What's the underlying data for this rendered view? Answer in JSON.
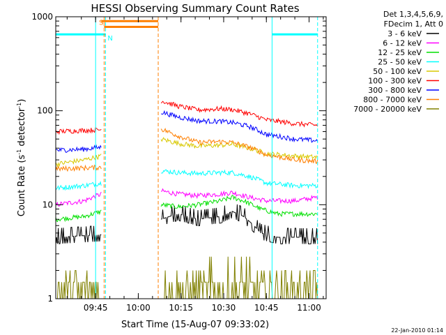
{
  "chart_data": {
    "type": "line",
    "title": "HESSI Observing Summary Count Rates",
    "xlabel": "Start Time (15-Aug-07 09:33:02)",
    "ylabel_main": "Count Rate (s",
    "ylabel_sup1": "-1",
    "ylabel_mid": " detector",
    "ylabel_sup2": "-1",
    "ylabel_end": ")",
    "yscale": "log",
    "ylim": [
      1,
      1000
    ],
    "xlim_minutes": [
      0,
      95
    ],
    "x_ticks": [
      {
        "t": 14,
        "label": "09:45"
      },
      {
        "t": 29,
        "label": "10:00"
      },
      {
        "t": 44,
        "label": "10:15"
      },
      {
        "t": 59,
        "label": "10:30"
      },
      {
        "t": 74,
        "label": "10:45"
      },
      {
        "t": 89,
        "label": "11:00"
      }
    ],
    "y_ticks": [
      {
        "v": 1,
        "label": "1"
      },
      {
        "v": 10,
        "label": "10"
      },
      {
        "v": 100,
        "label": "100"
      },
      {
        "v": 1000,
        "label": "1000"
      }
    ],
    "legend_header": [
      "Det 1,3,4,5,6,9,",
      "FDecim 1, Att 0"
    ],
    "series": [
      {
        "name": "3 - 6 keV",
        "color": "#000000",
        "segments": [
          [
            [
              0,
              4.5
            ],
            [
              16,
              4.8
            ]
          ],
          [
            [
              37,
              7
            ],
            [
              43,
              8
            ],
            [
              50,
              7
            ],
            [
              58,
              7.5
            ],
            [
              62,
              8.5
            ],
            [
              66,
              7.5
            ],
            [
              72,
              5
            ],
            [
              78,
              4.5
            ],
            [
              92,
              4.5
            ]
          ]
        ]
      },
      {
        "name": "6 - 12 keV",
        "color": "#ff00ff",
        "segments": [
          [
            [
              0,
              10
            ],
            [
              10,
              11
            ],
            [
              16,
              13
            ]
          ],
          [
            [
              37,
              14
            ],
            [
              43,
              13
            ],
            [
              50,
              12.5
            ],
            [
              58,
              13
            ],
            [
              62,
              13.5
            ],
            [
              68,
              12
            ],
            [
              74,
              11
            ],
            [
              84,
              11
            ],
            [
              92,
              12
            ]
          ]
        ]
      },
      {
        "name": "12 - 25 keV",
        "color": "#00e000",
        "segments": [
          [
            [
              0,
              7
            ],
            [
              10,
              7.5
            ],
            [
              16,
              8.5
            ]
          ],
          [
            [
              37,
              10
            ],
            [
              43,
              9.5
            ],
            [
              50,
              10
            ],
            [
              58,
              11
            ],
            [
              62,
              12
            ],
            [
              66,
              11
            ],
            [
              72,
              9
            ],
            [
              78,
              8
            ],
            [
              92,
              8
            ]
          ]
        ]
      },
      {
        "name": "25 - 50 keV",
        "color": "#00ffff",
        "segments": [
          [
            [
              0,
              15
            ],
            [
              10,
              16
            ],
            [
              16,
              17
            ]
          ],
          [
            [
              37,
              23
            ],
            [
              43,
              22
            ],
            [
              50,
              21.5
            ],
            [
              58,
              22
            ],
            [
              62,
              22
            ],
            [
              68,
              20
            ],
            [
              74,
              17
            ],
            [
              84,
              16
            ],
            [
              92,
              16
            ]
          ]
        ]
      },
      {
        "name": "50 - 100 keV",
        "color": "#d8c800",
        "segments": [
          [
            [
              0,
              27
            ],
            [
              10,
              30
            ],
            [
              16,
              33
            ]
          ],
          [
            [
              37,
              50
            ],
            [
              43,
              45
            ],
            [
              50,
              42
            ],
            [
              58,
              43
            ],
            [
              62,
              44
            ],
            [
              68,
              40
            ],
            [
              74,
              35
            ],
            [
              84,
              33
            ],
            [
              92,
              32
            ]
          ]
        ]
      },
      {
        "name": "100 - 300 keV",
        "color": "#ff0000",
        "segments": [
          [
            [
              0,
              60
            ],
            [
              16,
              63
            ]
          ],
          [
            [
              37,
              128
            ],
            [
              43,
              112
            ],
            [
              50,
              102
            ],
            [
              58,
              105
            ],
            [
              62,
              103
            ],
            [
              68,
              93
            ],
            [
              74,
              80
            ],
            [
              84,
              73
            ],
            [
              92,
              70
            ]
          ]
        ]
      },
      {
        "name": "300 - 800 keV",
        "color": "#0000ff",
        "segments": [
          [
            [
              0,
              38
            ],
            [
              10,
              39
            ],
            [
              16,
              41
            ]
          ],
          [
            [
              37,
              97
            ],
            [
              43,
              86
            ],
            [
              50,
              78
            ],
            [
              58,
              77
            ],
            [
              62,
              75
            ],
            [
              68,
              68
            ],
            [
              74,
              56
            ],
            [
              84,
              50
            ],
            [
              92,
              48
            ]
          ]
        ]
      },
      {
        "name": "800 - 7000 keV",
        "color": "#ff7f00",
        "segments": [
          [
            [
              0,
              24
            ],
            [
              16,
              25
            ]
          ],
          [
            [
              16,
              900
            ],
            [
              36,
              900
            ]
          ],
          [
            [
              37,
              64
            ],
            [
              43,
              54
            ],
            [
              50,
              46
            ],
            [
              58,
              47
            ],
            [
              62,
              46
            ],
            [
              68,
              41
            ],
            [
              74,
              34
            ],
            [
              84,
              30
            ],
            [
              92,
              29
            ]
          ]
        ]
      },
      {
        "name": "7000 - 20000 keV",
        "color": "#808000",
        "segments": [
          [
            [
              0,
              1.5
            ],
            [
              16,
              1.5
            ]
          ],
          [
            [
              37,
              1.5
            ],
            [
              43,
              1.5
            ],
            [
              50,
              1.5
            ],
            [
              58,
              2.1
            ],
            [
              62,
              2.3
            ],
            [
              66,
              2.1
            ],
            [
              72,
              1.5
            ],
            [
              92,
              1.5
            ]
          ]
        ]
      }
    ],
    "flag_lines": [
      {
        "t": 14,
        "color": "#00ffff",
        "style": "solid"
      },
      {
        "t": 17.5,
        "color": "#00ffff",
        "style": "dashed"
      },
      {
        "t": 17,
        "color": "#ff7f00",
        "style": "dashed"
      },
      {
        "t": 36,
        "color": "#ff7f00",
        "style": "dashed"
      },
      {
        "t": 76,
        "color": "#00ffff",
        "style": "solid"
      },
      {
        "t": 92,
        "color": "#00ffff",
        "style": "dashed"
      }
    ],
    "night_bars": [
      {
        "from": 0,
        "to": 17.5,
        "level": 650,
        "color": "#00ffff"
      },
      {
        "from": 76,
        "to": 92,
        "level": 650,
        "color": "#00ffff"
      }
    ],
    "saa_bars": [
      {
        "from": 17,
        "to": 36,
        "level": 780,
        "color": "#ff7f00"
      }
    ],
    "annotations": [
      {
        "t": 15.2,
        "v": 820,
        "text": "S",
        "color": "#ff7f00"
      },
      {
        "t": 18.2,
        "v": 560,
        "text": "N",
        "color": "#00ffff"
      }
    ],
    "grid": false,
    "legend_position": "top-right outside plot",
    "footer_date": "22-Jan-2010 01:14"
  }
}
